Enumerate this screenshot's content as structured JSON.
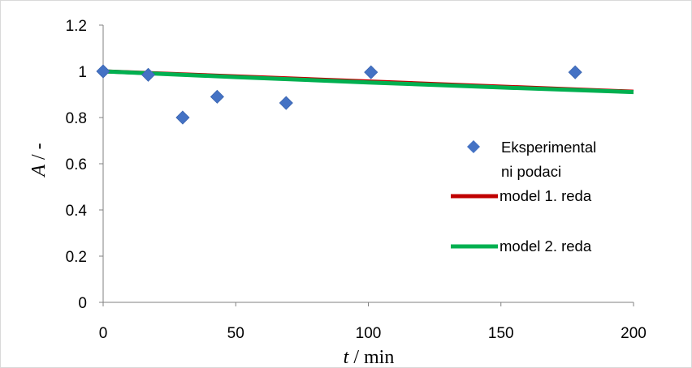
{
  "chart_data": {
    "type": "scatter",
    "title": "",
    "xlabel": {
      "var": "t",
      "unit": " / min"
    },
    "ylabel": {
      "var": "A",
      "unit": " / -"
    },
    "xlim": [
      0,
      200
    ],
    "ylim": [
      0,
      1.2
    ],
    "x_ticks": [
      0,
      50,
      100,
      150,
      200
    ],
    "y_ticks": [
      0,
      0.2,
      0.4,
      0.6,
      0.8,
      1,
      1.2
    ],
    "grid": false,
    "legend_position": "right",
    "series": [
      {
        "name": "Eksperimentalni podaci",
        "legend_lines": [
          "Eksperimental",
          "ni podaci"
        ],
        "kind": "markers",
        "marker": "diamond",
        "color": "#4472C4",
        "points": [
          [
            0,
            1.0
          ],
          [
            17,
            0.985
          ],
          [
            30,
            0.8
          ],
          [
            43,
            0.89
          ],
          [
            69,
            0.863
          ],
          [
            101,
            0.996
          ],
          [
            178,
            0.996
          ]
        ]
      },
      {
        "name": "model 1. reda",
        "kind": "line",
        "color": "#C00000",
        "points": [
          [
            0,
            1.0
          ],
          [
            200,
            0.912
          ]
        ]
      },
      {
        "name": "model 2. reda",
        "kind": "line",
        "color": "#00B050",
        "points": [
          [
            0,
            1.0
          ],
          [
            50,
            0.975
          ],
          [
            100,
            0.952
          ],
          [
            150,
            0.93
          ],
          [
            200,
            0.91
          ]
        ]
      }
    ]
  }
}
